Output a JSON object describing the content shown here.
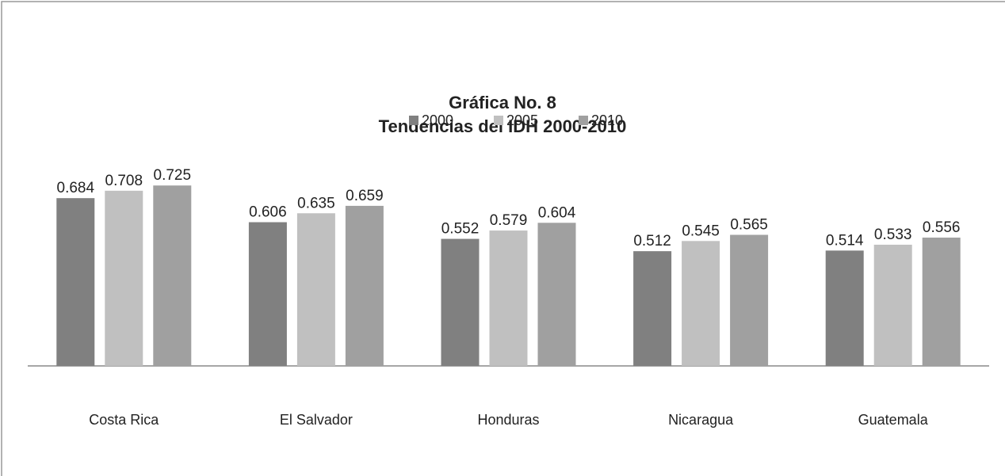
{
  "chart_data": {
    "type": "bar",
    "title": "Gráfica No.  8",
    "subtitle": "Tendencias del IDH  2000-2010",
    "categories": [
      "Costa Rica",
      "El Salvador",
      "Honduras",
      "Nicaragua",
      "Guatemala"
    ],
    "series": [
      {
        "name": "2000",
        "color": "#808080",
        "values": [
          0.684,
          0.606,
          0.552,
          0.512,
          0.514
        ]
      },
      {
        "name": "2005",
        "color": "#c0c0c0",
        "values": [
          0.708,
          0.635,
          0.579,
          0.545,
          0.533
        ]
      },
      {
        "name": "2010",
        "color": "#a0a0a0",
        "values": [
          0.725,
          0.659,
          0.604,
          0.565,
          0.556
        ]
      }
    ],
    "ylim": [
      0.14,
      0.8
    ],
    "legend": "top"
  }
}
